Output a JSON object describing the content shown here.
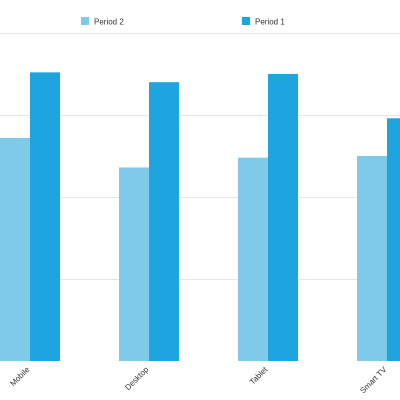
{
  "chart_data": {
    "type": "bar",
    "categories": [
      "Mobile",
      "Desktop",
      "Tablet",
      "Smart TV"
    ],
    "series": [
      {
        "name": "Period 2",
        "color": "#7fc9e9",
        "values": [
          68,
          59,
          62,
          62.5
        ]
      },
      {
        "name": "Period 1",
        "color": "#1ea5e0",
        "values": [
          88,
          85,
          87.5,
          74
        ]
      }
    ],
    "ylim": [
      0,
      100
    ],
    "grid": true,
    "legend_position": "top",
    "title": "",
    "xlabel": "",
    "ylabel": ""
  }
}
